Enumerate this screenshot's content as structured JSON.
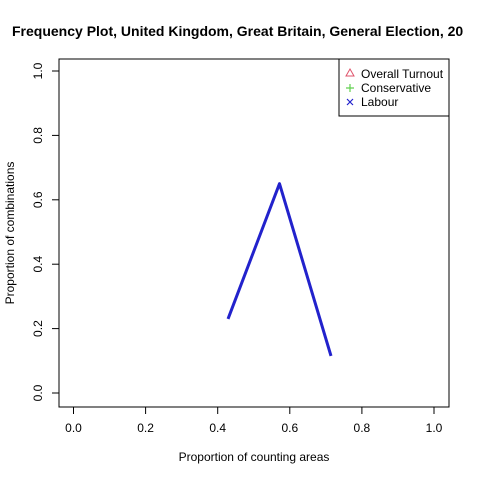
{
  "chart_data": {
    "type": "line",
    "title": "Frequency Plot, United Kingdom, Great Britain, General Election, 20",
    "xlabel": "Proportion of counting areas",
    "ylabel": "Proportion of combinations",
    "xlim": [
      0,
      1
    ],
    "ylim": [
      0,
      1
    ],
    "xticks": [
      0.0,
      0.2,
      0.4,
      0.6,
      0.8,
      1.0
    ],
    "yticks": [
      0.0,
      0.2,
      0.4,
      0.6,
      0.8,
      1.0
    ],
    "xtick_labels": [
      "0.0",
      "0.2",
      "0.4",
      "0.6",
      "0.8",
      "1.0"
    ],
    "ytick_labels": [
      "0.0",
      "0.2",
      "0.4",
      "0.6",
      "0.8",
      "1.0"
    ],
    "grid": false,
    "legend_position": "top-right",
    "legend": [
      {
        "label": "Overall Turnout",
        "marker": "triangle-icon",
        "color": "#DF536B"
      },
      {
        "label": "Conservative",
        "marker": "plus-icon",
        "color": "#61D04F"
      },
      {
        "label": "Labour",
        "marker": "cross-icon",
        "color": "#2222CC"
      }
    ],
    "series": [
      {
        "color": "#2222CC",
        "x": [
          0.4286,
          0.5714,
          0.7143
        ],
        "y": [
          0.23,
          0.65,
          0.115
        ]
      }
    ]
  }
}
